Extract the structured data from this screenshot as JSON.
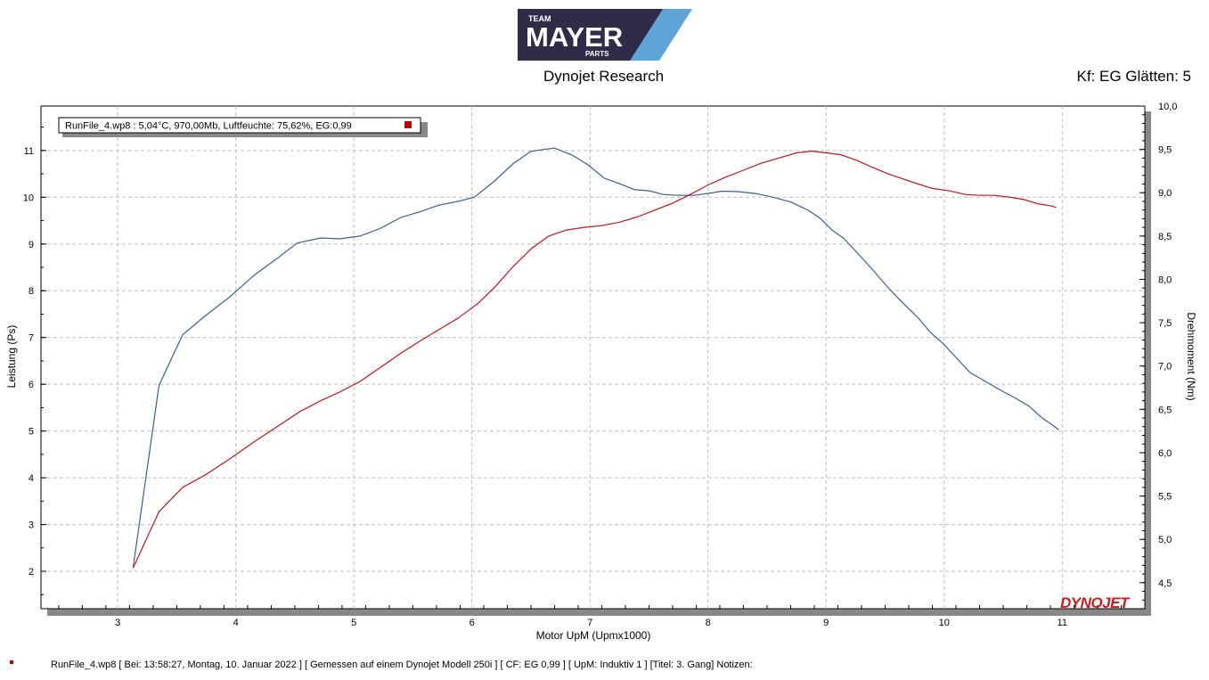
{
  "header": {
    "logo": {
      "line1": "TEAM",
      "line2": "MAYER",
      "line3": "PARTS",
      "bg_color": "#312b4a",
      "accent_color": "#5ea4d6"
    },
    "subtitle": "Dynojet Research",
    "smoothing": "Kf: EG Glätten: 5"
  },
  "footer": {
    "text": "RunFile_4.wp8 [ Bei: 13:58:27, Montag, 10. Januar 2022 ] [ Gemessen auf einem Dynojet Modell 250i ] [ CF: EG 0,99 ] [ UpM: Induktiv 1 ] [Titel: 3. Gang]  Notizen:"
  },
  "watermark": {
    "text": "DYNOJET"
  },
  "chart_data": {
    "type": "line",
    "legend": {
      "text": "RunFile_4.wp8  : 5,04°C, 970,00Mb, Luftfeuchte: 75,62%, EG:0,99",
      "marker_color": "#c00000",
      "position": "top-left"
    },
    "xlabel": "Motor UpM (Upmx1000)",
    "ylabel": "Leistung (Ps)",
    "y2label": "Drehmoment (Nm)",
    "xlim": [
      2.35,
      11.7
    ],
    "ylim": [
      1.2,
      11.95
    ],
    "y2lim": [
      4.2,
      10.0
    ],
    "x_ticks": [
      "3",
      "4",
      "5",
      "6",
      "7",
      "8",
      "9",
      "10",
      "11"
    ],
    "y_ticks": [
      "2",
      "3",
      "4",
      "5",
      "6",
      "7",
      "8",
      "9",
      "10",
      "11"
    ],
    "y2_ticks": [
      "4,5",
      "5,0",
      "5,5",
      "6,0",
      "6,5",
      "7,0",
      "7,5",
      "8,0",
      "8,5",
      "9,0",
      "9,5",
      "10,0"
    ],
    "grid": true,
    "series": [
      {
        "axis": "left",
        "color": "#3a5f8f",
        "points": [
          [
            3.13,
            2.08
          ],
          [
            3.35,
            5.98
          ],
          [
            3.55,
            7.06
          ],
          [
            3.75,
            7.48
          ],
          [
            3.95,
            7.87
          ],
          [
            4.15,
            8.32
          ],
          [
            4.35,
            8.69
          ],
          [
            4.52,
            9.02
          ],
          [
            4.72,
            9.13
          ],
          [
            4.88,
            9.11
          ],
          [
            5.05,
            9.17
          ],
          [
            5.22,
            9.33
          ],
          [
            5.4,
            9.57
          ],
          [
            5.55,
            9.68
          ],
          [
            5.72,
            9.83
          ],
          [
            5.88,
            9.91
          ],
          [
            6.02,
            10.0
          ],
          [
            6.18,
            10.32
          ],
          [
            6.35,
            10.72
          ],
          [
            6.5,
            10.98
          ],
          [
            6.6,
            11.02
          ],
          [
            6.7,
            11.05
          ],
          [
            6.85,
            10.9
          ],
          [
            6.98,
            10.7
          ],
          [
            7.12,
            10.41
          ],
          [
            7.25,
            10.29
          ],
          [
            7.38,
            10.16
          ],
          [
            7.5,
            10.14
          ],
          [
            7.62,
            10.06
          ],
          [
            7.75,
            10.04
          ],
          [
            7.88,
            10.04
          ],
          [
            8.02,
            10.09
          ],
          [
            8.12,
            10.13
          ],
          [
            8.25,
            10.12
          ],
          [
            8.4,
            10.08
          ],
          [
            8.55,
            10.0
          ],
          [
            8.7,
            9.9
          ],
          [
            8.85,
            9.72
          ],
          [
            8.95,
            9.55
          ],
          [
            9.05,
            9.3
          ],
          [
            9.15,
            9.12
          ],
          [
            9.25,
            8.85
          ],
          [
            9.38,
            8.49
          ],
          [
            9.52,
            8.08
          ],
          [
            9.65,
            7.74
          ],
          [
            9.78,
            7.42
          ],
          [
            9.88,
            7.12
          ],
          [
            10.0,
            6.85
          ],
          [
            10.12,
            6.52
          ],
          [
            10.22,
            6.25
          ],
          [
            10.35,
            6.06
          ],
          [
            10.48,
            5.87
          ],
          [
            10.6,
            5.71
          ],
          [
            10.72,
            5.53
          ],
          [
            10.82,
            5.3
          ],
          [
            10.92,
            5.12
          ],
          [
            10.97,
            5.03
          ]
        ]
      },
      {
        "axis": "right",
        "color": "#c0151b",
        "points": [
          [
            3.13,
            4.67
          ],
          [
            3.35,
            5.32
          ],
          [
            3.55,
            5.6
          ],
          [
            3.75,
            5.75
          ],
          [
            3.95,
            5.93
          ],
          [
            4.15,
            6.12
          ],
          [
            4.35,
            6.3
          ],
          [
            4.55,
            6.48
          ],
          [
            4.72,
            6.6
          ],
          [
            4.88,
            6.7
          ],
          [
            5.05,
            6.82
          ],
          [
            5.22,
            6.98
          ],
          [
            5.4,
            7.15
          ],
          [
            5.55,
            7.28
          ],
          [
            5.72,
            7.42
          ],
          [
            5.88,
            7.55
          ],
          [
            6.05,
            7.72
          ],
          [
            6.2,
            7.92
          ],
          [
            6.35,
            8.15
          ],
          [
            6.5,
            8.35
          ],
          [
            6.65,
            8.5
          ],
          [
            6.8,
            8.57
          ],
          [
            6.95,
            8.6
          ],
          [
            7.1,
            8.62
          ],
          [
            7.25,
            8.66
          ],
          [
            7.4,
            8.72
          ],
          [
            7.55,
            8.8
          ],
          [
            7.7,
            8.88
          ],
          [
            7.85,
            8.98
          ],
          [
            8.0,
            9.09
          ],
          [
            8.15,
            9.18
          ],
          [
            8.3,
            9.26
          ],
          [
            8.45,
            9.34
          ],
          [
            8.6,
            9.4
          ],
          [
            8.75,
            9.46
          ],
          [
            8.88,
            9.48
          ],
          [
            9.0,
            9.46
          ],
          [
            9.12,
            9.44
          ],
          [
            9.25,
            9.38
          ],
          [
            9.38,
            9.3
          ],
          [
            9.52,
            9.22
          ],
          [
            9.65,
            9.16
          ],
          [
            9.78,
            9.1
          ],
          [
            9.9,
            9.05
          ],
          [
            10.05,
            9.02
          ],
          [
            10.18,
            8.98
          ],
          [
            10.3,
            8.97
          ],
          [
            10.42,
            8.97
          ],
          [
            10.55,
            8.95
          ],
          [
            10.68,
            8.92
          ],
          [
            10.8,
            8.87
          ],
          [
            10.9,
            8.85
          ],
          [
            10.95,
            8.83
          ]
        ]
      }
    ]
  }
}
